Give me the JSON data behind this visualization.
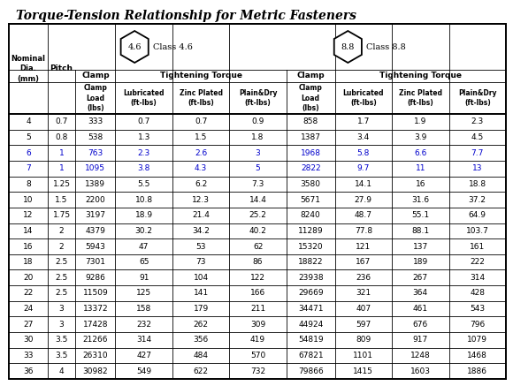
{
  "title": "Torque-Tension Relationship for Metric Fasteners",
  "tightening_torque_46": "Tightening Torque",
  "tightening_torque_88": "Tightening Torque",
  "class46_label": "Class 4.6",
  "class88_label": "Class 8.8",
  "bolt46_label": "4.6",
  "bolt88_label": "8.8",
  "rows": [
    [
      4,
      0.7,
      333,
      0.7,
      0.7,
      0.9,
      858,
      1.7,
      1.9,
      2.3
    ],
    [
      5,
      0.8,
      538,
      1.3,
      1.5,
      1.8,
      1387,
      3.4,
      3.9,
      4.5
    ],
    [
      6,
      1,
      763,
      2.3,
      2.6,
      3.0,
      1968,
      5.8,
      6.6,
      7.7
    ],
    [
      7,
      1,
      1095,
      3.8,
      4.3,
      5.0,
      2822,
      9.7,
      11.0,
      13.0
    ],
    [
      8,
      1.25,
      1389,
      5.5,
      6.2,
      7.3,
      3580,
      14.1,
      16.0,
      18.8
    ],
    [
      10,
      1.5,
      2200,
      10.8,
      12.3,
      14.4,
      5671,
      27.9,
      31.6,
      37.2
    ],
    [
      12,
      1.75,
      3197,
      18.9,
      21.4,
      25.2,
      8240,
      48.7,
      55.1,
      64.9
    ],
    [
      14,
      2,
      4379,
      30.2,
      34.2,
      40.2,
      11289,
      77.8,
      88.1,
      103.7
    ],
    [
      16,
      2,
      5943,
      47,
      53,
      62,
      15320,
      121,
      137,
      161
    ],
    [
      18,
      2.5,
      7301,
      65,
      73,
      86,
      18822,
      167,
      189,
      222
    ],
    [
      20,
      2.5,
      9286,
      91,
      104,
      122,
      23938,
      236,
      267,
      314
    ],
    [
      22,
      2.5,
      11509,
      125,
      141,
      166,
      29669,
      321,
      364,
      428
    ],
    [
      24,
      3,
      13372,
      158,
      179,
      211,
      34471,
      407,
      461,
      543
    ],
    [
      27,
      3,
      17428,
      232,
      262,
      309,
      44924,
      597,
      676,
      796
    ],
    [
      30,
      3.5,
      21266,
      314,
      356,
      419,
      54819,
      809,
      917,
      1079
    ],
    [
      33,
      3.5,
      26310,
      427,
      484,
      570,
      67821,
      1101,
      1248,
      1468
    ],
    [
      36,
      4,
      30982,
      549,
      622,
      732,
      79866,
      1415,
      1603,
      1886
    ]
  ],
  "blue_rows_0indexed": [
    2,
    3
  ],
  "blue_color": "#0000cc",
  "text_color": "#000000",
  "background_color": "#ffffff"
}
